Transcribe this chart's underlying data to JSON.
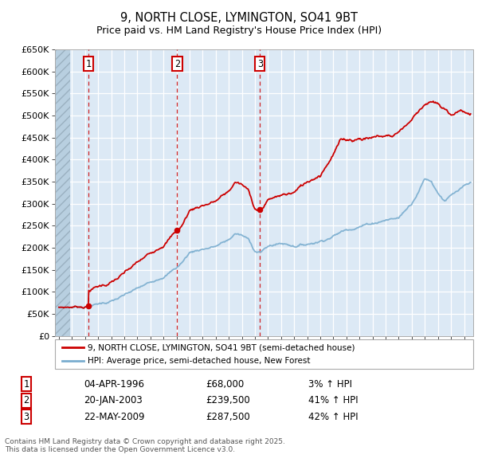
{
  "title": "9, NORTH CLOSE, LYMINGTON, SO41 9BT",
  "subtitle": "Price paid vs. HM Land Registry's House Price Index (HPI)",
  "xlim": [
    1993.7,
    2025.7
  ],
  "ylim": [
    0,
    650000
  ],
  "yticks": [
    0,
    50000,
    100000,
    150000,
    200000,
    250000,
    300000,
    350000,
    400000,
    450000,
    500000,
    550000,
    600000,
    650000
  ],
  "ytick_labels": [
    "£0",
    "£50K",
    "£100K",
    "£150K",
    "£200K",
    "£250K",
    "£300K",
    "£350K",
    "£400K",
    "£450K",
    "£500K",
    "£550K",
    "£600K",
    "£650K"
  ],
  "background_color": "#ffffff",
  "plot_bg_color": "#dce9f5",
  "grid_color": "#ffffff",
  "transactions": [
    {
      "num": 1,
      "year": 1996.25,
      "price": 68000,
      "date": "04-APR-1996",
      "pct": "3% ↑ HPI"
    },
    {
      "num": 2,
      "year": 2003.05,
      "price": 239500,
      "date": "20-JAN-2003",
      "pct": "41% ↑ HPI"
    },
    {
      "num": 3,
      "year": 2009.38,
      "price": 287500,
      "date": "22-MAY-2009",
      "pct": "42% ↑ HPI"
    }
  ],
  "red_line_color": "#cc0000",
  "blue_line_color": "#7aadcf",
  "legend_label_red": "9, NORTH CLOSE, LYMINGTON, SO41 9BT (semi-detached house)",
  "legend_label_blue": "HPI: Average price, semi-detached house, New Forest",
  "footnote": "Contains HM Land Registry data © Crown copyright and database right 2025.\nThis data is licensed under the Open Government Licence v3.0.",
  "table_rows": [
    [
      "1",
      "04-APR-1996",
      "£68,000",
      "3% ↑ HPI"
    ],
    [
      "2",
      "20-JAN-2003",
      "£239,500",
      "41% ↑ HPI"
    ],
    [
      "3",
      "22-MAY-2009",
      "£287,500",
      "42% ↑ HPI"
    ]
  ]
}
